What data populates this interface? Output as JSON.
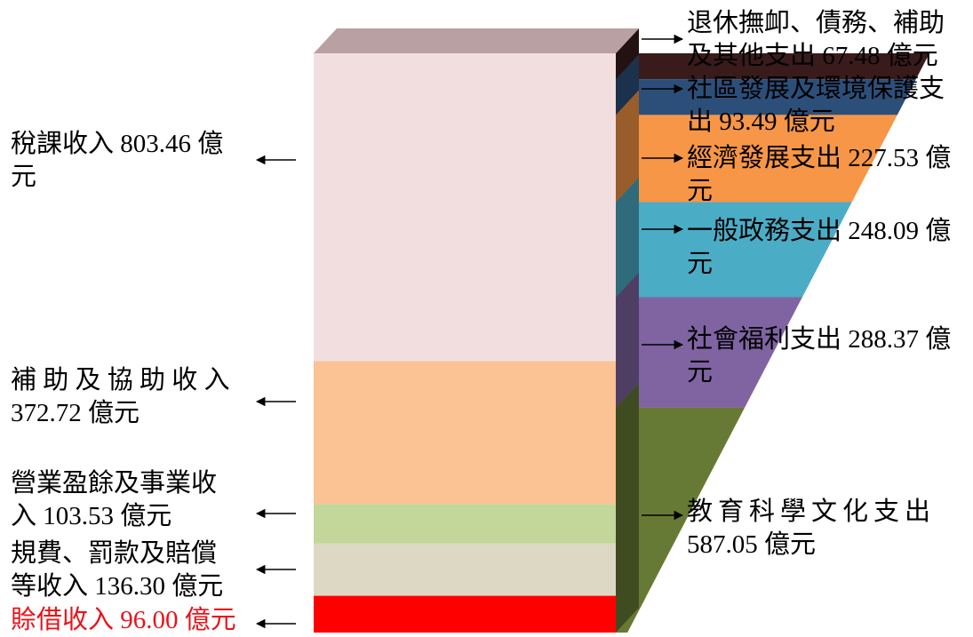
{
  "chart_data": {
    "type": "stacked-bar-3d",
    "title": "",
    "unit": "億元",
    "revenue": [
      {
        "name": "稅課收入",
        "value": 803.46,
        "label": "稅課收入 803.46 億元",
        "color": "#f2dede"
      },
      {
        "name": "補助及協助收入",
        "value": 372.72,
        "label": "補 助 及 協 助 收 入 372.72 億元",
        "color": "#fbc394"
      },
      {
        "name": "營業盈餘及事業收入",
        "value": 103.53,
        "label": "營業盈餘及事業收入 103.53 億元",
        "color": "#c4d79b"
      },
      {
        "name": "規費、罰款及賠償等收入",
        "value": 136.3,
        "label": "規費、罰款及賠償等收入 136.30 億元",
        "color": "#ddd8c4"
      },
      {
        "name": "賒借收入",
        "value": 96.0,
        "label": "賒借收入 96.00 億元",
        "color": "#ff0000"
      }
    ],
    "expenditure": [
      {
        "name": "退休撫卹、債務、補助及其他支出",
        "value": 67.48,
        "label": "退休撫卹、債務、補助及其他支出 67.48 億元",
        "color": "#3a1b1c"
      },
      {
        "name": "社區發展及環境保護支出",
        "value": 93.49,
        "label": "社區發展及環境保護支出 93.49 億元",
        "color": "#2c4f7a"
      },
      {
        "name": "經濟發展支出",
        "value": 227.53,
        "label": "經濟發展支出 227.53 億元",
        "color": "#f79646"
      },
      {
        "name": "一般政務支出",
        "value": 248.09,
        "label": "一般政務支出 248.09 億元",
        "color": "#4bacc6"
      },
      {
        "name": "社會福利支出",
        "value": 288.37,
        "label": "社會福利支出 288.37 億元",
        "color": "#8064a2"
      },
      {
        "name": "教育科學文化支出",
        "value": 587.05,
        "label": "教育科學文化支出 587.05 億元",
        "color": "#667a35"
      }
    ]
  },
  "labels": {
    "rev1_l1": "稅課收入 803.46 億",
    "rev1_l2": "元",
    "rev2_l1": "補 助 及 協 助 收 入",
    "rev2_l2": "372.72 億元",
    "rev3_l1": "營業盈餘及事業收",
    "rev3_l2": "入 103.53 億元",
    "rev4_l1": "規費、罰款及賠償",
    "rev4_l2": "等收入 136.30 億元",
    "rev5_l1": "賒借收入 96.00 億元",
    "exp1_l1": "退休撫卹、債務、補助",
    "exp1_l2": "及其他支出 67.48 億元",
    "exp2_l1": "社區發展及環境保護支",
    "exp2_l2": "出 93.49 億元",
    "exp3_l1": "經濟發展支出 227.53 億",
    "exp3_l2": "元",
    "exp4_l1": "一般政務支出 248.09 億",
    "exp4_l2": "元",
    "exp5_l1": "社會福利支出 288.37 億",
    "exp5_l2": "元",
    "exp6_l1": "教育科學文化支出",
    "exp6_l2": "587.05 億元"
  }
}
